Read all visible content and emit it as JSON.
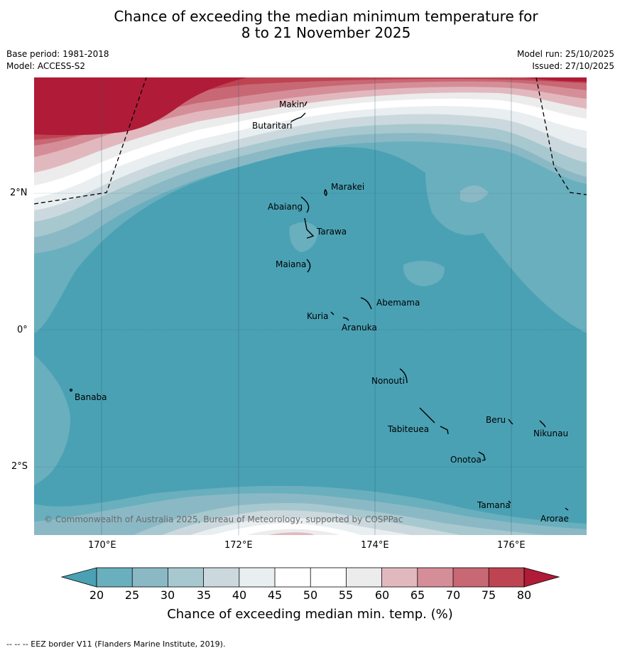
{
  "title_line1": "Chance of exceeding the median minimum temperature for",
  "title_line2": "8 to 21 November 2025",
  "base_period": "Base period: 1981-2018",
  "model": "Model: ACCESS-S2",
  "model_run": "Model run: 25/10/2025",
  "issued": "Issued: 27/10/2025",
  "credit": "© Commonwealth of Australia 2025, Bureau of Meteorology, supported by COSPPac",
  "colorbar_label": "Chance of exceeding median min. temp. (%)",
  "eez_note": "--  --  -- EEZ border V11 (Flanders Marine Institute, 2019).",
  "lon_labels": [
    "170°E",
    "172°E",
    "174°E",
    "176°E"
  ],
  "lat_labels": [
    "2°N",
    "0°",
    "2°S"
  ],
  "colorbar_ticks": [
    "20",
    "25",
    "30",
    "35",
    "40",
    "45",
    "50",
    "55",
    "60",
    "65",
    "70",
    "75",
    "80"
  ],
  "colors": {
    "c_lt20": "#4aa1b4",
    "c20": "#6aafbe",
    "c25": "#8ab9c5",
    "c30": "#a8c8cf",
    "c35": "#cbd9de",
    "c40": "#e9eef0",
    "c45": "#ffffff",
    "c50": "#ffffff",
    "c55": "#ececec",
    "c60": "#e2b8bf",
    "c65": "#d58e98",
    "c70": "#c86874",
    "c75": "#be4452",
    "c80": "#b01b38"
  },
  "places": [
    "Makin",
    "Butaritari",
    "Marakei",
    "Abaiang",
    "Tarawa",
    "Maiana",
    "Abemama",
    "Kuria",
    "Aranuka",
    "Banaba",
    "Nonouti",
    "Beru",
    "Nikunau",
    "Tabiteuea",
    "Onotoa",
    "Tamana",
    "Arorae"
  ]
}
